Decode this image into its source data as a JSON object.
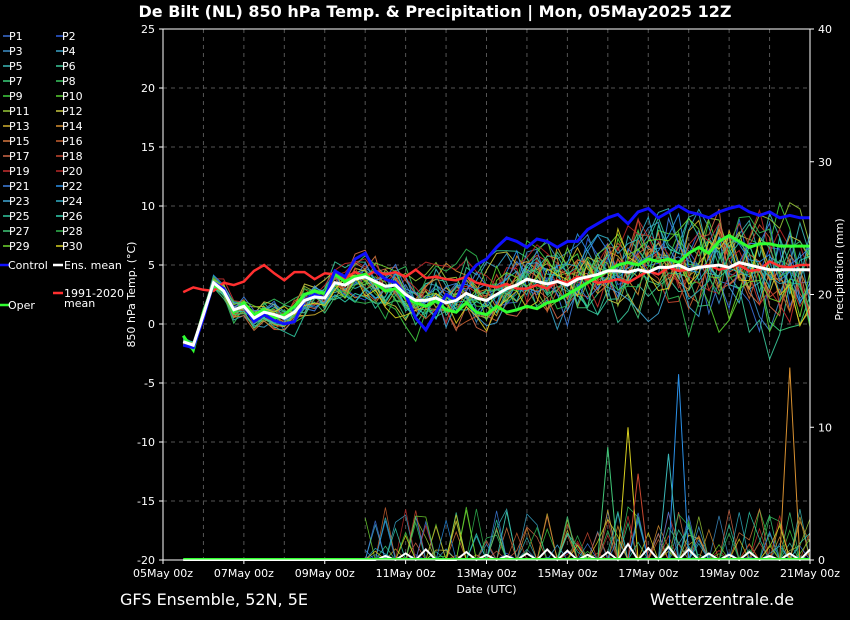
{
  "header": {
    "title": "De Bilt  (NL)  850 hPa Temp. & Precipitation | Mon, 05May2025 12Z"
  },
  "footer": {
    "left": "GFS Ensemble, 52N, 5E",
    "right": "Wetterzentrale.de"
  },
  "chart_data": {
    "type": "line",
    "xlabel": "Date (UTC)",
    "ylabel": "850 hPa Temp. (°C)",
    "y2label": "Precipitation (mm)",
    "x_tick_labels": [
      "05May 00z",
      "07May 00z",
      "09May 00z",
      "11May 00z",
      "13May 00z",
      "15May 00z",
      "17May 00z",
      "19May 00z",
      "21May 00z"
    ],
    "x_range_hours": [
      0,
      384
    ],
    "ylim": [
      -20,
      25
    ],
    "y_ticks": [
      25,
      20,
      15,
      10,
      5,
      0,
      -5,
      -10,
      -15,
      -20
    ],
    "y2lim": [
      0,
      40
    ],
    "y2_ticks": [
      40,
      30,
      20,
      10,
      0
    ],
    "grid": true,
    "legend_position": "left",
    "x_hours": [
      12,
      18,
      24,
      30,
      36,
      42,
      48,
      54,
      60,
      66,
      72,
      78,
      84,
      90,
      96,
      102,
      108,
      114,
      120,
      126,
      132,
      138,
      144,
      150,
      156,
      162,
      168,
      174,
      180,
      186,
      192,
      198,
      204,
      210,
      216,
      222,
      228,
      234,
      240,
      246,
      252,
      258,
      264,
      270,
      276,
      282,
      288,
      294,
      300,
      306,
      312,
      318,
      324,
      330,
      336,
      342,
      348,
      354,
      360,
      366,
      372,
      378,
      384
    ],
    "members": [
      {
        "name": "P1",
        "color": "#3b6fd6"
      },
      {
        "name": "P2",
        "color": "#2f5fe0"
      },
      {
        "name": "P3",
        "color": "#3d8fc8"
      },
      {
        "name": "P4",
        "color": "#3aa4c8"
      },
      {
        "name": "P5",
        "color": "#3ab8b8"
      },
      {
        "name": "P6",
        "color": "#3ac89a"
      },
      {
        "name": "P7",
        "color": "#3ad07a"
      },
      {
        "name": "P8",
        "color": "#38c860"
      },
      {
        "name": "P9",
        "color": "#40d040"
      },
      {
        "name": "P10",
        "color": "#58d030"
      },
      {
        "name": "P11",
        "color": "#98c838"
      },
      {
        "name": "P12",
        "color": "#c8c840"
      },
      {
        "name": "P13",
        "color": "#d0b030"
      },
      {
        "name": "P14",
        "color": "#d89030"
      },
      {
        "name": "P15",
        "color": "#d87840"
      },
      {
        "name": "P16",
        "color": "#c86030"
      },
      {
        "name": "P17",
        "color": "#d06848"
      },
      {
        "name": "P18",
        "color": "#c84830"
      },
      {
        "name": "P19",
        "color": "#c83030"
      },
      {
        "name": "P20",
        "color": "#b82828"
      },
      {
        "name": "P21",
        "color": "#3f80e0"
      },
      {
        "name": "P22",
        "color": "#2a90e8"
      },
      {
        "name": "P23",
        "color": "#40a8d8"
      },
      {
        "name": "P24",
        "color": "#30b0c8"
      },
      {
        "name": "P25",
        "color": "#30c8a0"
      },
      {
        "name": "P26",
        "color": "#30d0b0"
      },
      {
        "name": "P27",
        "color": "#40c878"
      },
      {
        "name": "P28",
        "color": "#30b850"
      },
      {
        "name": "P29",
        "color": "#70d830"
      },
      {
        "name": "P30",
        "color": "#d8d020"
      }
    ],
    "control": {
      "name": "Control",
      "color": "#1010ff",
      "values": [
        -1.8,
        -2.0,
        0.5,
        3.5,
        3.0,
        1.2,
        1.5,
        0.2,
        0.8,
        0.3,
        0.0,
        0.2,
        2.0,
        2.5,
        2.2,
        4.5,
        4.0,
        5.5,
        6.0,
        4.5,
        3.8,
        3.5,
        2.5,
        0.5,
        -0.5,
        1.0,
        2.5,
        2.0,
        4.0,
        5.0,
        5.5,
        6.5,
        7.3,
        7.0,
        6.5,
        7.2,
        7.0,
        6.5,
        7.0,
        7.0,
        8.0,
        8.5,
        9.0,
        9.3,
        8.5,
        9.5,
        9.8,
        9.0,
        9.5,
        10.0,
        9.5,
        9.3,
        9.0,
        9.5,
        9.8,
        10.0,
        9.5,
        9.2,
        9.5,
        9.0,
        9.2,
        9.0,
        9.0
      ]
    },
    "ens_mean": {
      "name": "Ens. mean",
      "color": "#ffffff",
      "values": [
        -1.5,
        -1.8,
        0.8,
        3.5,
        2.8,
        1.2,
        1.5,
        0.5,
        1.0,
        0.8,
        0.5,
        1.0,
        2.0,
        2.3,
        2.2,
        3.5,
        3.3,
        3.8,
        4.0,
        3.6,
        3.2,
        3.3,
        2.5,
        2.0,
        2.0,
        2.2,
        1.8,
        2.0,
        2.6,
        2.2,
        2.0,
        2.5,
        3.0,
        3.3,
        3.8,
        3.6,
        3.4,
        3.6,
        3.3,
        3.8,
        4.0,
        4.2,
        4.5,
        4.5,
        4.4,
        4.6,
        4.4,
        4.8,
        4.8,
        5.0,
        4.6,
        4.8,
        4.9,
        5.0,
        4.8,
        5.2,
        5.0,
        4.8,
        4.6,
        4.6,
        4.6,
        4.6,
        4.6
      ]
    },
    "oper": {
      "name": "Oper",
      "color": "#30ff30",
      "values": [
        -1.0,
        -2.2,
        1.0,
        3.3,
        2.8,
        1.0,
        1.8,
        0.8,
        1.2,
        0.5,
        0.8,
        1.5,
        2.5,
        2.8,
        2.6,
        4.2,
        3.6,
        4.0,
        4.2,
        3.5,
        2.8,
        3.0,
        2.2,
        1.8,
        1.5,
        2.0,
        1.2,
        1.0,
        1.8,
        1.0,
        0.8,
        1.5,
        1.0,
        1.2,
        1.5,
        1.3,
        1.8,
        2.0,
        2.5,
        3.0,
        3.5,
        4.0,
        4.5,
        5.0,
        5.2,
        5.0,
        5.5,
        5.3,
        5.5,
        5.2,
        6.0,
        6.5,
        6.0,
        7.0,
        7.5,
        7.0,
        6.5,
        6.8,
        6.8,
        6.6,
        6.6,
        6.6,
        6.6
      ]
    },
    "climate_mean": {
      "name": "1991-2020 mean",
      "color": "#ff3030",
      "values": [
        2.7,
        3.1,
        2.9,
        2.8,
        3.5,
        3.3,
        3.6,
        4.5,
        5.0,
        4.3,
        3.7,
        4.4,
        4.4,
        3.8,
        4.3,
        4.2,
        3.9,
        4.4,
        4.0,
        4.5,
        4.2,
        4.4,
        4.0,
        4.6,
        3.9,
        4.0,
        3.8,
        3.7,
        4.0,
        3.5,
        3.3,
        3.1,
        3.4,
        3.0,
        3.0,
        3.3,
        3.0,
        3.7,
        3.5,
        4.0,
        3.8,
        3.5,
        3.6,
        3.8,
        3.5,
        4.0,
        4.5,
        4.2,
        4.8,
        4.5,
        4.6,
        4.8,
        5.0,
        4.6,
        4.8,
        5.0,
        4.5,
        4.6,
        5.3,
        4.9,
        4.8,
        5.0,
        5.0
      ]
    },
    "precip_mean_mm": {
      "hours": [
        132,
        144,
        156,
        180,
        192,
        204,
        216,
        228,
        240,
        252,
        264,
        276,
        288,
        300,
        312,
        324,
        336,
        348,
        360,
        372,
        384
      ],
      "values": [
        0.3,
        0.5,
        0.8,
        0.6,
        0.4,
        0.3,
        0.5,
        0.8,
        0.7,
        0.4,
        0.6,
        1.2,
        0.9,
        1.0,
        0.8,
        0.5,
        0.4,
        0.6,
        0.3,
        0.5,
        0.8
      ]
    },
    "precip_peaks_mm": [
      {
        "hour": 276,
        "value": 10.0,
        "color": "#d8d020"
      },
      {
        "hour": 306,
        "value": 14.0,
        "color": "#2a90e8"
      },
      {
        "hour": 372,
        "value": 14.5,
        "color": "#d89030"
      },
      {
        "hour": 264,
        "value": 8.5,
        "color": "#40c878"
      },
      {
        "hour": 300,
        "value": 8.0,
        "color": "#3ab8b8"
      },
      {
        "hour": 282,
        "value": 6.5,
        "color": "#c84830"
      }
    ]
  }
}
